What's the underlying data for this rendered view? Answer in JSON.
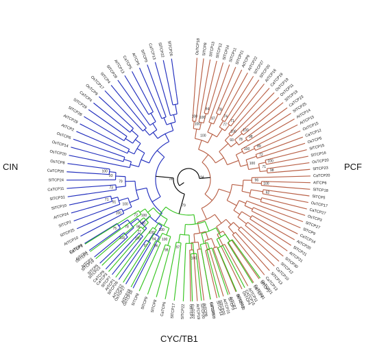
{
  "colors": {
    "CIN": "#1f2cbd",
    "PCF": "#b85f45",
    "CYC": "#35c41f",
    "root": "#000000",
    "text": "#111111"
  },
  "clades": {
    "CIN": {
      "label": "CIN",
      "leaves": [
        "OsTCP16",
        "OsTCP27",
        "SlTCP26",
        "SlTCP7",
        "CaTCP8",
        "SlTCP5",
        "AtTCP3",
        "AtTCP4",
        "CaTCP9",
        "AtTCP10",
        "SlTCP25",
        "SlTCP2",
        "AtTCP24",
        "SlTCP10",
        "SlTCP31",
        "CaTCP11",
        "SlTCP24",
        "CaTCP26",
        "OsTCP8",
        "OsTCP20",
        "OsTCP14",
        "OsTCP6",
        "AtTCP2",
        "AtTCP29",
        "SlTCP28",
        "SlTCP29",
        "CaTCP4",
        "OsTCP9",
        "OsTCP17",
        "SlTCP4",
        "SlTCP28",
        "AtTCP13",
        "CaTCP5",
        "AtTCP5",
        "SlTCP9",
        "CaTCP13",
        "SlTCP22",
        "SlTCP26"
      ],
      "support": [
        "97",
        "94",
        "100",
        "100",
        "75",
        "78",
        "98",
        "100",
        "71",
        "91",
        "100",
        "73",
        "100",
        "93",
        "79"
      ]
    },
    "PCF": {
      "label": "PCF",
      "leaves": [
        "OsTCP18",
        "SlTCP8",
        "SlTCP13",
        "SlTCP12",
        "SlTCP24",
        "SlTCP11",
        "SlTCP21",
        "AtTCP9",
        "AtTCP22",
        "SlTCP27",
        "SlTCP20",
        "AtTCP16",
        "CaTCP19",
        "OsTCP19",
        "OsTCP11",
        "SlTCP19",
        "CaTCP23",
        "SlTCP25",
        "AtTCP14",
        "AtTCP15",
        "OsTCP15",
        "CaTCP12",
        "OsTCP5",
        "SlTCP15",
        "SlTCP16",
        "OsTCP20",
        "SlTCP23",
        "CaTCP20",
        "AtTCP6",
        "SlTCP18",
        "SlTCP5",
        "OsTCP17",
        "CaTCP27",
        "OsTCP3",
        "SlTCP27",
        "SlTCP9",
        "CaTCP14",
        "AtTCP20",
        "SlTCP21",
        "AtTCP21",
        "SlTCP30",
        "SlTCP12",
        "CaTCP10",
        "SlTCP13",
        "CaTCP13",
        "SlTCP1",
        "CaTCP21",
        "AtTCP11",
        "OsTCP4",
        "OsTCP10",
        "AtTCP7",
        "AtTCP21",
        "SlTCP14",
        "SlTCP3",
        "AtTCP8",
        "AtTCP19",
        "OsTCP1"
      ],
      "support": [
        "100",
        "94",
        "100",
        "100",
        "78",
        "97",
        "74",
        "71",
        "77",
        "100",
        "100",
        "100",
        "98",
        "78",
        "93",
        "89",
        "100",
        "72",
        "100",
        "98",
        "71",
        "100",
        "100",
        "96",
        "62"
      ]
    },
    "CYC": {
      "label": "CYC/TB1",
      "leaves": [
        "CaTCP1",
        "OsTCP2",
        "SlTCP19",
        "SlTCP23",
        "CaTCP3",
        "AtTCP1",
        "AtTCP12",
        "AtTCP18",
        "SlTCP8",
        "SlTCP9",
        "SlTCP8",
        "CaTCP6",
        "SlTCP17",
        "SlTCP22",
        "CaTCP7",
        "SlTCP20",
        "CaTCP28",
        "SlTCP20",
        "SlTCP3",
        "SlTCP13",
        "CaTCP15",
        "OsTCP7",
        "OsTCP21"
      ],
      "support": [
        "72",
        "77",
        "100",
        "100",
        "100",
        "96",
        "98",
        "100",
        "100",
        "97",
        "100"
      ]
    }
  },
  "root_support": [
    "78",
    "79",
    "94"
  ]
}
